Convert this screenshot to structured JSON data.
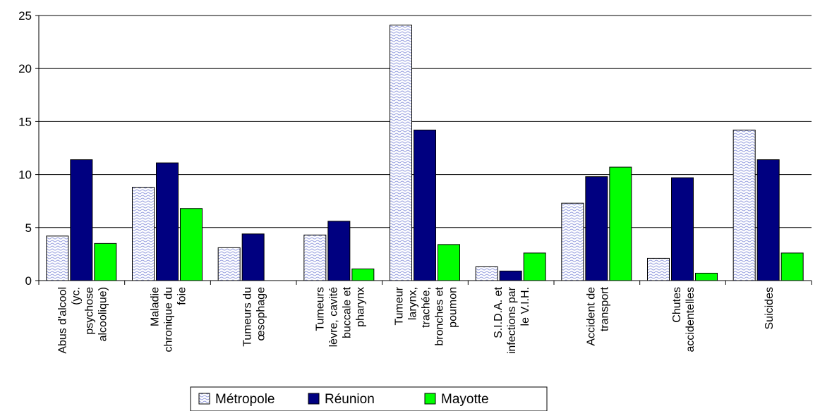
{
  "chart_data": {
    "type": "bar",
    "categories": [
      [
        "Abus d'alcool",
        "(yc.",
        "psychose",
        "alcoolique)"
      ],
      [
        "Maladie",
        "chronique du",
        "foie"
      ],
      [
        "Tumeurs du",
        "œsophage"
      ],
      [
        "Tumeurs",
        "lèvre, cavité",
        "buccale et",
        "pharynx"
      ],
      [
        "Tumeur",
        "larynx,",
        "trachée,",
        "bronches et",
        "poumon"
      ],
      [
        "S.I.D.A. et",
        "infections par",
        "le V.I.H."
      ],
      [
        "Accident de",
        "transport"
      ],
      [
        "Chutes",
        "accidentelles"
      ],
      [
        "Suicides"
      ]
    ],
    "series": [
      {
        "name": "Métropole",
        "values": [
          4.2,
          8.8,
          3.1,
          4.3,
          24.1,
          1.3,
          7.3,
          2.1,
          14.2
        ]
      },
      {
        "name": "Réunion",
        "values": [
          11.4,
          11.1,
          4.4,
          5.6,
          14.2,
          0.9,
          9.8,
          9.7,
          11.4
        ]
      },
      {
        "name": "Mayotte",
        "values": [
          3.5,
          6.8,
          0,
          1.1,
          3.4,
          2.6,
          10.7,
          0.7,
          2.6
        ]
      }
    ],
    "ylim": [
      0,
      25
    ],
    "yticks": [
      0,
      5,
      10,
      15,
      20,
      25
    ],
    "grid": true,
    "legend_position": "bottom",
    "colors": {
      "Métropole": "#c8ccf0",
      "Réunion": "#000080",
      "Mayotte": "#00ff00"
    }
  }
}
